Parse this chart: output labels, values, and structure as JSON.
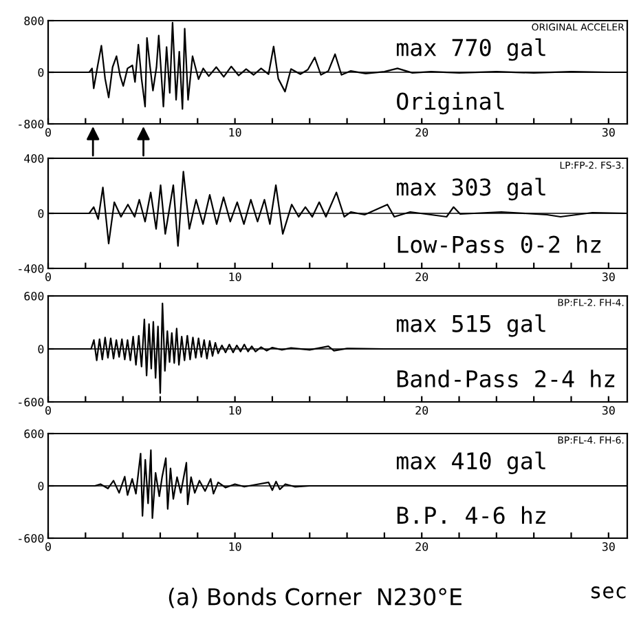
{
  "chart_data": [
    {
      "type": "line",
      "xlim": [
        0,
        31
      ],
      "ylim": [
        -800,
        800
      ],
      "yticks": [
        -800,
        0,
        800
      ],
      "xticks": [
        0,
        {
          "value": 2,
          "label": null
        },
        {
          "value": 4,
          "label": null
        },
        {
          "value": 6,
          "label": null
        },
        {
          "value": 8,
          "label": null
        },
        10,
        {
          "value": 12,
          "label": null
        },
        {
          "value": 14,
          "label": null
        },
        {
          "value": 16,
          "label": null
        },
        {
          "value": 18,
          "label": null
        },
        20,
        {
          "value": 22,
          "label": null
        },
        {
          "value": 24,
          "label": null
        },
        {
          "value": 26,
          "label": null
        },
        {
          "value": 28,
          "label": null
        },
        30
      ],
      "annotations": [
        "max 770 gal",
        "Original",
        "ORIGINAL ACCELER"
      ],
      "series": [
        {
          "color": "#000000",
          "x": [
            0,
            2.2,
            2.35,
            2.44,
            2.65,
            2.85,
            3.05,
            3.24,
            3.45,
            3.66,
            3.85,
            4.02,
            4.25,
            4.51,
            4.65,
            4.83,
            5.0,
            5.19,
            5.29,
            5.45,
            5.61,
            5.8,
            5.92,
            6.05,
            6.17,
            6.34,
            6.51,
            6.66,
            6.85,
            7.02,
            7.19,
            7.31,
            7.49,
            7.73,
            8.05,
            8.3,
            8.6,
            9.0,
            9.4,
            9.8,
            10.2,
            10.6,
            11.0,
            11.4,
            11.8,
            12.07,
            12.32,
            12.68,
            13.0,
            13.5,
            13.9,
            14.27,
            14.6,
            15.0,
            15.36,
            15.7,
            16.2,
            17,
            18,
            18.7,
            19.5,
            20.5,
            22,
            24,
            26,
            28,
            30,
            31
          ],
          "values": [
            0,
            0,
            60,
            -249,
            100,
            412,
            -100,
            -391,
            80,
            249,
            -50,
            -213,
            60,
            107,
            -150,
            427,
            -100,
            -533,
            533,
            100,
            -284,
            80,
            569,
            0,
            -533,
            391,
            -320,
            770,
            -427,
            320,
            -569,
            675,
            -427,
            249,
            -107,
            60,
            -60,
            80,
            -70,
            90,
            -50,
            50,
            -40,
            60,
            -30,
            400,
            -100,
            -300,
            50,
            -30,
            40,
            230,
            -40,
            20,
            280,
            -40,
            20,
            -20,
            10,
            60,
            -10,
            10,
            -10,
            10,
            -10,
            10,
            0,
            0
          ]
        }
      ]
    },
    {
      "type": "line",
      "xlim": [
        0,
        31
      ],
      "ylim": [
        -400,
        400
      ],
      "yticks": [
        -400,
        0,
        400
      ],
      "xticks": [
        0,
        {
          "value": 2,
          "label": null
        },
        {
          "value": 4,
          "label": null
        },
        {
          "value": 6,
          "label": null
        },
        {
          "value": 8,
          "label": null
        },
        10,
        {
          "value": 12,
          "label": null
        },
        {
          "value": 14,
          "label": null
        },
        {
          "value": 16,
          "label": null
        },
        {
          "value": 18,
          "label": null
        },
        20,
        {
          "value": 22,
          "label": null
        },
        {
          "value": 24,
          "label": null
        },
        {
          "value": 26,
          "label": null
        },
        {
          "value": 28,
          "label": null
        },
        30
      ],
      "annotations": [
        "max 303 gal",
        "Low-Pass 0-2 hz",
        "LP:FP-2. FS-3."
      ],
      "series": [
        {
          "color": "#000000",
          "x": [
            0,
            2.2,
            2.44,
            2.68,
            2.93,
            3.24,
            3.54,
            3.9,
            4.27,
            4.63,
            4.88,
            5.19,
            5.49,
            5.78,
            6.02,
            6.27,
            6.7,
            6.95,
            7.24,
            7.56,
            7.92,
            8.29,
            8.65,
            9.02,
            9.39,
            9.75,
            10.12,
            10.48,
            10.85,
            11.21,
            11.58,
            11.87,
            12.19,
            12.56,
            13.04,
            13.41,
            13.77,
            14.14,
            14.51,
            14.87,
            15.43,
            15.85,
            16.21,
            16.94,
            18.16,
            18.53,
            19.38,
            21.33,
            21.7,
            22.06,
            24.26,
            26.7,
            27.43,
            29.13,
            31
          ],
          "values": [
            0,
            0,
            46,
            -42,
            188,
            -219,
            81,
            -25,
            64,
            -25,
            99,
            -60,
            152,
            -113,
            205,
            -149,
            205,
            -237,
            303,
            -113,
            99,
            -78,
            134,
            -78,
            117,
            -60,
            81,
            -78,
            99,
            -60,
            99,
            -78,
            205,
            -149,
            64,
            -25,
            46,
            -25,
            81,
            -25,
            152,
            -25,
            10,
            -10,
            64,
            -25,
            10,
            -25,
            46,
            -5,
            10,
            -10,
            -25,
            5,
            0
          ]
        }
      ]
    },
    {
      "type": "line",
      "xlim": [
        0,
        31
      ],
      "ylim": [
        -600,
        600
      ],
      "yticks": [
        -600,
        0,
        600
      ],
      "xticks": [
        0,
        {
          "value": 2,
          "label": null
        },
        {
          "value": 4,
          "label": null
        },
        {
          "value": 6,
          "label": null
        },
        {
          "value": 8,
          "label": null
        },
        10,
        {
          "value": 12,
          "label": null
        },
        {
          "value": 14,
          "label": null
        },
        {
          "value": 16,
          "label": null
        },
        {
          "value": 18,
          "label": null
        },
        20,
        {
          "value": 22,
          "label": null
        },
        {
          "value": 24,
          "label": null
        },
        {
          "value": 26,
          "label": null
        },
        {
          "value": 28,
          "label": null
        },
        30
      ],
      "annotations": [
        "max 515 gal",
        "Band-Pass 2-4 hz",
        "BP:FL-2. FH-4."
      ],
      "series": [
        {
          "color": "#000000",
          "x": [
            0,
            2.3,
            2.45,
            2.6,
            2.75,
            2.9,
            3.05,
            3.2,
            3.35,
            3.5,
            3.65,
            3.8,
            3.95,
            4.1,
            4.25,
            4.4,
            4.55,
            4.7,
            4.85,
            5.0,
            5.15,
            5.27,
            5.4,
            5.52,
            5.63,
            5.75,
            5.88,
            6.0,
            6.12,
            6.25,
            6.38,
            6.5,
            6.62,
            6.75,
            6.88,
            7.0,
            7.15,
            7.3,
            7.45,
            7.6,
            7.75,
            7.9,
            8.05,
            8.2,
            8.35,
            8.5,
            8.65,
            8.8,
            8.95,
            9.1,
            9.3,
            9.5,
            9.7,
            9.9,
            10.1,
            10.3,
            10.5,
            10.7,
            10.9,
            11.1,
            11.4,
            11.7,
            12.0,
            12.5,
            13,
            14,
            15,
            15.3,
            16,
            18,
            31
          ],
          "values": [
            0,
            0,
            100,
            -130,
            110,
            -120,
            130,
            -100,
            120,
            -110,
            100,
            -90,
            110,
            -120,
            100,
            -130,
            140,
            -180,
            150,
            -200,
            334,
            -302,
            281,
            -223,
            307,
            -329,
            254,
            -500,
            515,
            -249,
            201,
            -150,
            180,
            -160,
            230,
            -180,
            140,
            -130,
            150,
            -120,
            130,
            -100,
            120,
            -90,
            100,
            -110,
            90,
            -80,
            70,
            -50,
            40,
            -40,
            50,
            -40,
            40,
            -30,
            50,
            -30,
            30,
            -30,
            20,
            -20,
            15,
            -10,
            10,
            -10,
            30,
            -20,
            5,
            0,
            0
          ]
        }
      ]
    },
    {
      "type": "line",
      "xlim": [
        0,
        31
      ],
      "ylim": [
        -600,
        600
      ],
      "yticks": [
        -600,
        0,
        600
      ],
      "xlabel": "sec",
      "xticks": [
        0,
        {
          "value": 2,
          "label": null
        },
        {
          "value": 4,
          "label": null
        },
        {
          "value": 6,
          "label": null
        },
        {
          "value": 8,
          "label": null
        },
        10,
        {
          "value": 12,
          "label": null
        },
        {
          "value": 14,
          "label": null
        },
        {
          "value": 16,
          "label": null
        },
        {
          "value": 18,
          "label": null
        },
        20,
        {
          "value": 22,
          "label": null
        },
        {
          "value": 24,
          "label": null
        },
        {
          "value": 26,
          "label": null
        },
        {
          "value": 28,
          "label": null
        },
        30
      ],
      "annotations": [
        "max 410 gal",
        "B.P. 4-6 hz",
        "BP:FL-4. FH-6.",
        "(a) Bonds Corner  N230°E"
      ],
      "series": [
        {
          "color": "#000000",
          "x": [
            0,
            2.5,
            2.8,
            3.2,
            3.5,
            3.8,
            4.1,
            4.25,
            4.5,
            4.7,
            4.95,
            5.05,
            5.2,
            5.35,
            5.5,
            5.58,
            5.75,
            5.95,
            6.1,
            6.3,
            6.4,
            6.55,
            6.7,
            6.9,
            7.1,
            7.4,
            7.47,
            7.65,
            7.85,
            8.1,
            8.4,
            8.7,
            8.85,
            9.1,
            9.5,
            10,
            10.5,
            11,
            11.8,
            12.0,
            12.2,
            12.4,
            12.7,
            13.2,
            14,
            31
          ],
          "values": [
            0,
            0,
            20,
            -30,
            60,
            -80,
            106,
            -106,
            80,
            -90,
            371,
            -345,
            300,
            -200,
            410,
            -371,
            150,
            -120,
            100,
            318,
            -265,
            200,
            -150,
            100,
            -80,
            265,
            -212,
            100,
            -80,
            60,
            -60,
            80,
            -90,
            40,
            -20,
            20,
            -10,
            10,
            40,
            -50,
            50,
            -40,
            20,
            -10,
            0,
            0
          ]
        }
      ]
    }
  ]
}
